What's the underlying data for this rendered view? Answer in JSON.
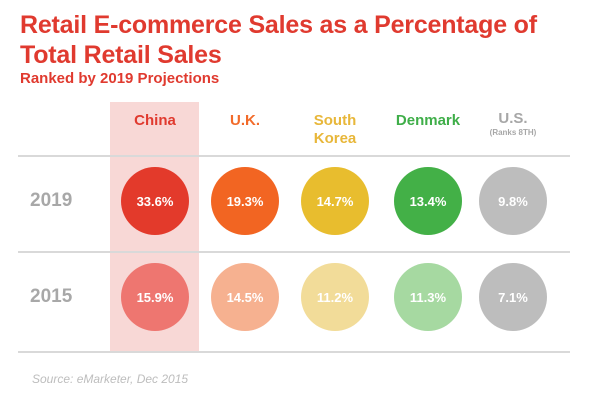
{
  "title": "Retail E-commerce Sales as a Percentage of Total Retail Sales",
  "subtitle": "Ranked by 2019 Projections",
  "source": "Source: eMarketer, Dec 2015",
  "chart_data": {
    "type": "table",
    "title": "Retail E-commerce Sales as a Percentage of Total Retail Sales",
    "subtitle": "Ranked by 2019 Projections",
    "categories": [
      "China",
      "U.K.",
      "South Korea",
      "Denmark",
      "U.S."
    ],
    "column_notes": [
      "",
      "",
      "",
      "",
      "(Ranks 8TH)"
    ],
    "rows": [
      "2019",
      "2015"
    ],
    "series": [
      {
        "name": "2019",
        "values": [
          33.6,
          19.3,
          14.7,
          13.4,
          9.8
        ],
        "labels": [
          "33.6%",
          "19.3%",
          "14.7%",
          "13.4%",
          "9.8%"
        ]
      },
      {
        "name": "2015",
        "values": [
          15.9,
          14.5,
          11.2,
          11.3,
          7.1
        ],
        "labels": [
          "15.9%",
          "14.5%",
          "11.2%",
          "11.3%",
          "7.1%"
        ]
      }
    ],
    "header_colors": [
      "#e03a2f",
      "#f26b2a",
      "#e8b73a",
      "#3fae49",
      "#a7a7a7"
    ],
    "circle_colors": {
      "2019": [
        "#e33a2b",
        "#f26522",
        "#e8bd2e",
        "#43b047",
        "#bdbdbd"
      ],
      "2015": [
        "#ee7670",
        "#f6b190",
        "#f2dc99",
        "#a6d9a1",
        "#bdbdbd"
      ]
    },
    "highlight_color": "#f8d8d6",
    "highlighted_column": "China"
  }
}
